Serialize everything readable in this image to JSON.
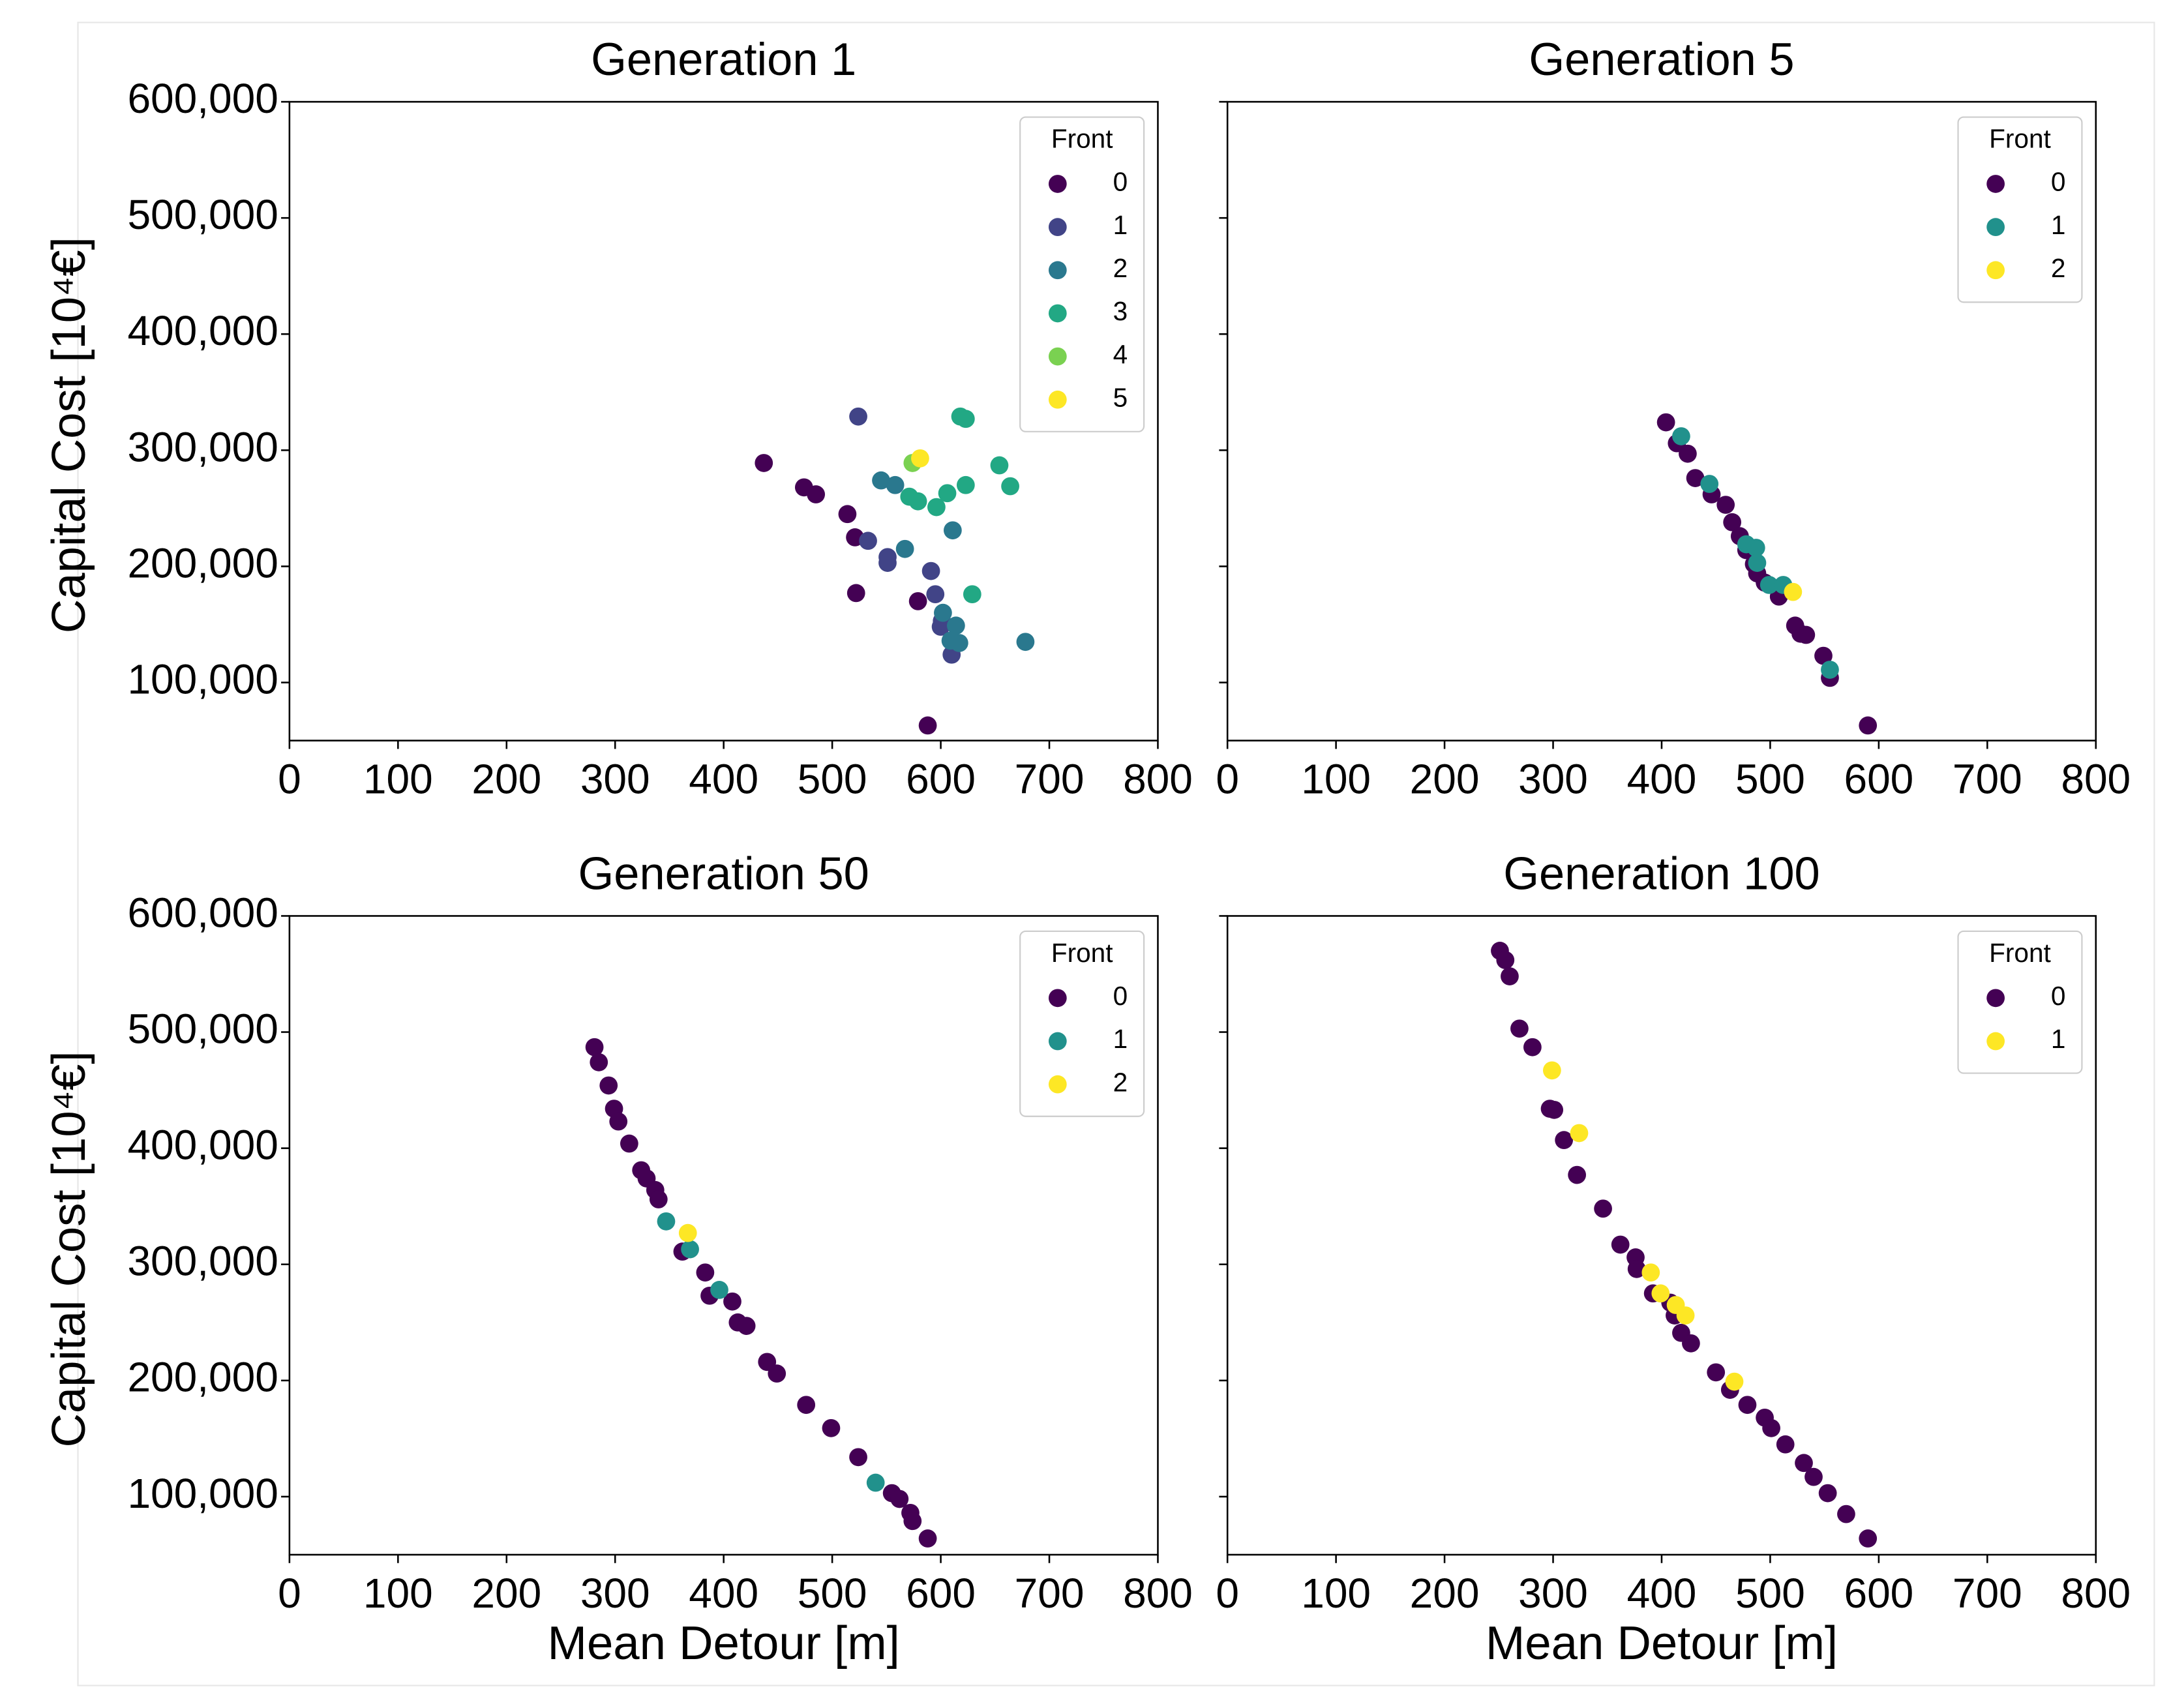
{
  "chart_data": [
    {
      "type": "scatter",
      "title": "Generation 1",
      "ylabel": "Capital Cost [10⁴€]",
      "xlim": [
        0,
        800
      ],
      "xticks": [
        0,
        100,
        200,
        300,
        400,
        500,
        600,
        700,
        800
      ],
      "ylim": [
        50000,
        600000
      ],
      "yticks": [
        {
          "value": 100000,
          "label": "100,000"
        },
        {
          "value": 200000,
          "label": "200,000"
        },
        {
          "value": 300000,
          "label": "300,000"
        },
        {
          "value": 400000,
          "label": "400,000"
        },
        {
          "value": 500000,
          "label": "500,000"
        },
        {
          "value": 600000,
          "label": "600,000"
        }
      ],
      "legend_title": "Front",
      "legend": "upper right",
      "series": [
        {
          "name": "0",
          "color": "#440154",
          "x": [
            437,
            474,
            485,
            514,
            521,
            522,
            579,
            588
          ],
          "values": [
            289000,
            268000,
            262000,
            245000,
            225000,
            177000,
            170000,
            63000
          ]
        },
        {
          "name": "1",
          "color": "#414487",
          "x": [
            524,
            533,
            551,
            551,
            591,
            595,
            600,
            610,
            601
          ],
          "values": [
            329000,
            222000,
            208000,
            203000,
            196000,
            176000,
            148000,
            124000,
            153000
          ]
        },
        {
          "name": "2",
          "color": "#2a788e",
          "x": [
            545,
            558,
            567,
            611,
            602,
            614,
            617,
            678,
            609
          ],
          "values": [
            274000,
            270000,
            215000,
            231000,
            160000,
            149000,
            134000,
            135000,
            136000
          ]
        },
        {
          "name": "3",
          "color": "#22a884",
          "x": [
            618,
            623,
            654,
            664,
            623,
            606,
            596,
            571,
            579,
            629
          ],
          "values": [
            329000,
            327000,
            287000,
            269000,
            270000,
            263000,
            251000,
            260000,
            256000,
            176000
          ]
        },
        {
          "name": "4",
          "color": "#7ad151",
          "x": [
            574
          ],
          "values": [
            289000
          ]
        },
        {
          "name": "5",
          "color": "#fde725",
          "x": [
            581
          ],
          "values": [
            293000
          ]
        }
      ]
    },
    {
      "type": "scatter",
      "title": "Generation 5",
      "xlim": [
        0,
        800
      ],
      "xticks": [
        0,
        100,
        200,
        300,
        400,
        500,
        600,
        700,
        800
      ],
      "ylim": [
        50000,
        600000
      ],
      "yticks": [
        100000,
        200000,
        300000,
        400000,
        500000,
        600000
      ],
      "legend_title": "Front",
      "legend": "upper right",
      "series": [
        {
          "name": "0",
          "color": "#440154",
          "x": [
            404,
            414,
            424,
            431,
            446,
            459,
            465,
            472,
            478,
            485,
            488,
            495,
            508,
            523,
            528,
            533,
            549,
            555,
            590
          ],
          "values": [
            324000,
            306000,
            297000,
            276000,
            262000,
            253000,
            238000,
            226000,
            214000,
            202000,
            194000,
            186000,
            174000,
            149000,
            142000,
            141000,
            123000,
            104000,
            63000
          ]
        },
        {
          "name": "1",
          "color": "#21918c",
          "x": [
            418,
            444,
            478,
            487,
            488,
            499,
            512,
            555
          ],
          "values": [
            312000,
            271000,
            219000,
            216000,
            203000,
            184000,
            184000,
            111000
          ]
        },
        {
          "name": "2",
          "color": "#fde725",
          "x": [
            521
          ],
          "values": [
            178000
          ]
        }
      ]
    },
    {
      "type": "scatter",
      "title": "Generation 50",
      "xlabel": "Mean Detour [m]",
      "ylabel": "Capital Cost [10⁴€]",
      "xlim": [
        0,
        800
      ],
      "xticks": [
        0,
        100,
        200,
        300,
        400,
        500,
        600,
        700,
        800
      ],
      "ylim": [
        50000,
        600000
      ],
      "yticks": [
        {
          "value": 100000,
          "label": "100,000"
        },
        {
          "value": 200000,
          "label": "200,000"
        },
        {
          "value": 300000,
          "label": "300,000"
        },
        {
          "value": 400000,
          "label": "400,000"
        },
        {
          "value": 500000,
          "label": "500,000"
        },
        {
          "value": 600000,
          "label": "600,000"
        }
      ],
      "legend_title": "Front",
      "legend": "upper right",
      "series": [
        {
          "name": "0",
          "color": "#440154",
          "x": [
            281,
            285,
            294,
            299,
            303,
            313,
            324,
            329,
            337,
            340,
            362,
            383,
            387,
            408,
            413,
            421,
            440,
            449,
            476,
            499,
            524,
            555,
            562,
            572,
            574,
            588
          ],
          "values": [
            487000,
            474000,
            454000,
            434000,
            423000,
            404000,
            381000,
            374000,
            364000,
            356000,
            311000,
            293000,
            273000,
            268000,
            250000,
            247000,
            216000,
            206000,
            179000,
            159000,
            134000,
            103000,
            98000,
            86000,
            79000,
            64000
          ]
        },
        {
          "name": "1",
          "color": "#21918c",
          "x": [
            347,
            369,
            396,
            540
          ],
          "values": [
            337000,
            313000,
            278000,
            112000
          ]
        },
        {
          "name": "2",
          "color": "#fde725",
          "x": [
            367
          ],
          "values": [
            327000
          ]
        }
      ]
    },
    {
      "type": "scatter",
      "title": "Generation 100",
      "xlabel": "Mean Detour [m]",
      "xlim": [
        0,
        800
      ],
      "xticks": [
        0,
        100,
        200,
        300,
        400,
        500,
        600,
        700,
        800
      ],
      "ylim": [
        50000,
        600000
      ],
      "yticks": [
        100000,
        200000,
        300000,
        400000,
        500000,
        600000
      ],
      "legend_title": "Front",
      "legend": "upper right",
      "series": [
        {
          "name": "0",
          "color": "#440154",
          "x": [
            251,
            256,
            260,
            269,
            281,
            297,
            301,
            310,
            322,
            346,
            362,
            376,
            377,
            392,
            408,
            412,
            418,
            427,
            450,
            463,
            479,
            495,
            501,
            514,
            531,
            540,
            553,
            570,
            590
          ],
          "values": [
            570000,
            562000,
            548000,
            503000,
            487000,
            434000,
            433000,
            407000,
            377000,
            348000,
            317000,
            306000,
            296000,
            275000,
            267000,
            256000,
            241000,
            232000,
            207000,
            192000,
            179000,
            168000,
            159000,
            145000,
            129000,
            117000,
            103000,
            85000,
            64000
          ]
        },
        {
          "name": "1",
          "color": "#fde725",
          "x": [
            299,
            324,
            390,
            399,
            413,
            422,
            467
          ],
          "values": [
            467000,
            413000,
            293000,
            275000,
            265000,
            256000,
            199000
          ]
        }
      ]
    }
  ]
}
